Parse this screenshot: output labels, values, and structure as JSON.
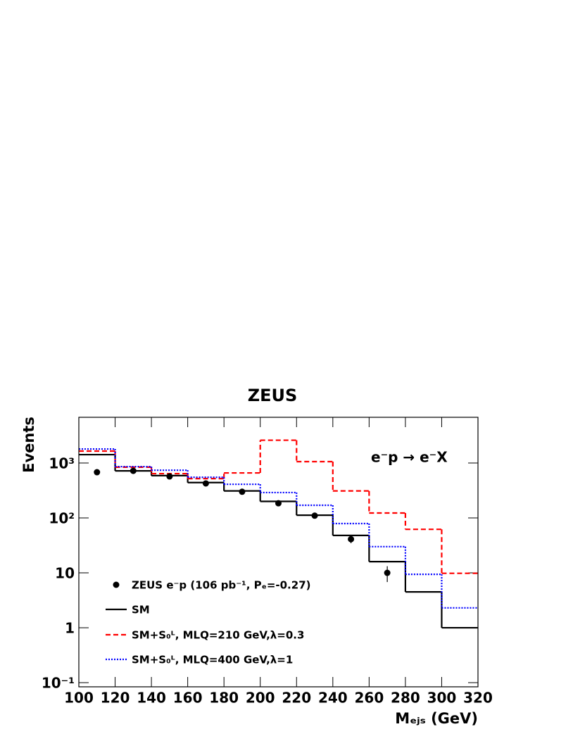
{
  "chart_data": {
    "type": "histogram",
    "title": "ZEUS",
    "x_label": "Mₑⱼₛ (GeV)",
    "y_label": "Events",
    "annotation": "e⁻p → e⁻X",
    "log_y": true,
    "legend": "lower left",
    "bins": [
      100,
      120,
      140,
      160,
      180,
      200,
      220,
      240,
      260,
      280,
      300,
      320
    ],
    "series": [
      {
        "name": "SM",
        "color": "#000000",
        "style": "solid",
        "values": [
          1420,
          720,
          590,
          440,
          310,
          200,
          112,
          48,
          16,
          4.5,
          1.0
        ]
      },
      {
        "name": "SM+S₀ᴸ, MLQ=210 GeV,λ=0.3",
        "color": "#ff0000",
        "style": "dashed",
        "values": [
          1650,
          840,
          640,
          520,
          660,
          2600,
          1060,
          310,
          123,
          62,
          9.8
        ]
      },
      {
        "name": "SM+S₀ᴸ, MLQ=400 GeV,λ=1",
        "color": "#0000ff",
        "style": "dotted",
        "values": [
          1800,
          860,
          740,
          550,
          410,
          290,
          170,
          79,
          30,
          9.4,
          2.3
        ]
      }
    ],
    "points": {
      "name": "ZEUS e⁻p (106 pb⁻¹, Pₑ=-0.27)",
      "color": "#000000",
      "x": [
        110,
        130,
        150,
        170,
        190,
        210,
        230,
        250,
        270
      ],
      "values": [
        680,
        720,
        570,
        425,
        300,
        185,
        110,
        41,
        10
      ],
      "errors": [
        26,
        27,
        24,
        21,
        17,
        14,
        10,
        6.4,
        3.2
      ]
    },
    "xlim": [
      100,
      320
    ],
    "ylim": [
      0.084,
      6800
    ],
    "xticks": [
      100,
      120,
      140,
      160,
      180,
      200,
      220,
      240,
      260,
      280,
      300,
      320
    ],
    "yticks": [
      {
        "value": 0.1,
        "label": "10⁻¹"
      },
      1,
      10,
      {
        "value": 100,
        "label": "10²"
      },
      {
        "value": 1000,
        "label": "10³"
      }
    ]
  }
}
